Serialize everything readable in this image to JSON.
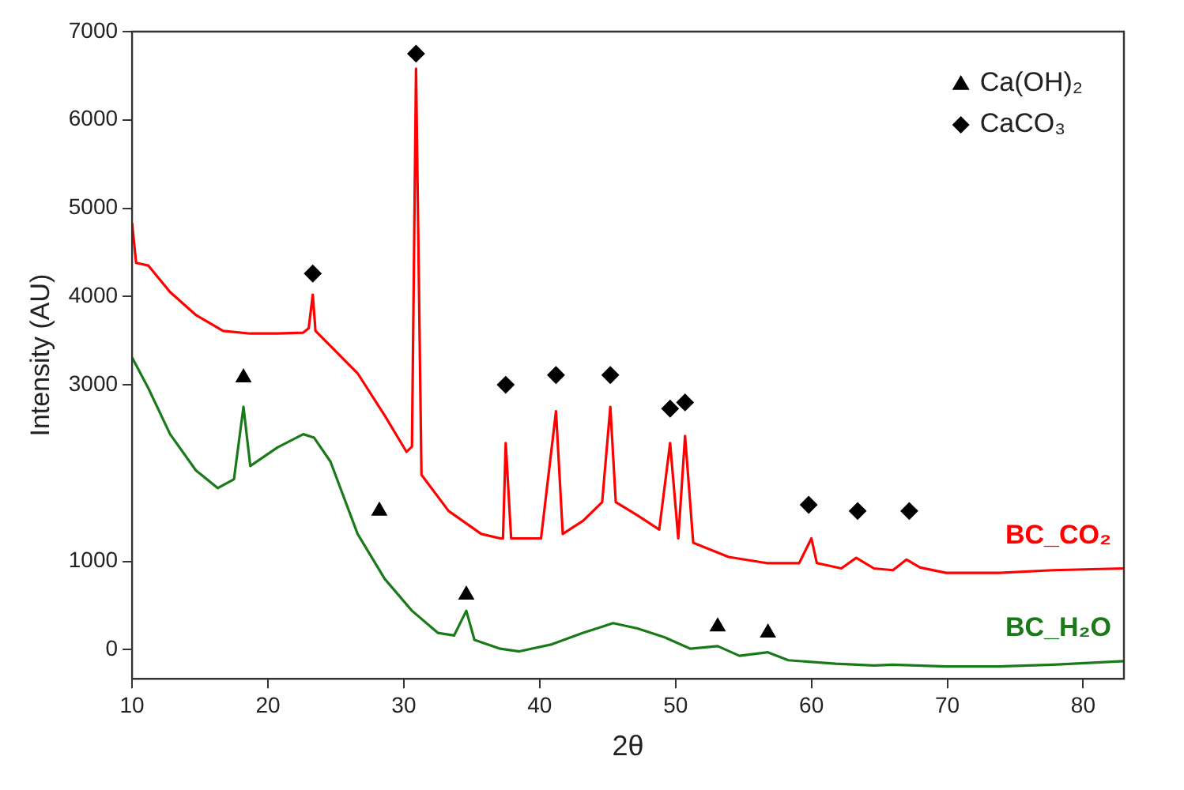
{
  "chart_data": {
    "type": "line",
    "xlabel": "2θ",
    "ylabel": "Intensity (AU)",
    "xlim": [
      10,
      83
    ],
    "xticks": [
      10,
      20,
      30,
      40,
      50,
      60,
      70,
      80
    ],
    "ylim": [
      -330,
      7000
    ],
    "yticks": [
      0,
      1000,
      3000,
      4000,
      5000,
      6000,
      7000
    ],
    "grid": false,
    "legend": "top right",
    "marker": "none",
    "line_style": "solid",
    "series": [
      {
        "name": "BC_CO₂",
        "color": "#ff0000",
        "x": [
          10,
          10.3,
          11.2,
          12.8,
          14.7,
          16.7,
          18.7,
          20.7,
          22.6,
          23.0,
          23.3,
          23.5,
          24.6,
          26.6,
          28.6,
          30.2,
          30.6,
          30.9,
          31.3,
          33.3,
          35.7,
          37.1,
          37.3,
          37.5,
          37.9,
          40.1,
          41.2,
          41.7,
          43.2,
          44.6,
          45.2,
          45.6,
          47.2,
          48.8,
          49.6,
          50.2,
          50.7,
          51.3,
          53.9,
          56.7,
          59.1,
          60.0,
          60.4,
          62.2,
          63.3,
          64.6,
          66.0,
          67.0,
          68.0,
          69.9,
          73.9,
          77.8,
          83.0
        ],
        "values": [
          4830,
          4380,
          4350,
          4050,
          3790,
          3610,
          3580,
          3580,
          3590,
          3640,
          4020,
          3610,
          3440,
          3130,
          2650,
          2240,
          2300,
          6580,
          1980,
          1570,
          1310,
          1260,
          1260,
          2340,
          1260,
          1260,
          2700,
          1310,
          1460,
          1670,
          2750,
          1670,
          1520,
          1360,
          2340,
          1260,
          2420,
          1210,
          1050,
          980,
          980,
          1260,
          980,
          920,
          1040,
          920,
          900,
          1020,
          930,
          870,
          870,
          900,
          920
        ]
      },
      {
        "name": "BC_H₂O",
        "color": "#1a7a1a",
        "x": [
          10,
          11.2,
          12.8,
          14.7,
          16.3,
          17.5,
          18.2,
          18.7,
          20.7,
          22.6,
          23.4,
          24.6,
          26.6,
          28.6,
          30.6,
          32.5,
          33.7,
          34.6,
          35.2,
          37.1,
          38.5,
          40.9,
          43.2,
          45.4,
          47.2,
          49.2,
          51.1,
          53.1,
          54.7,
          56.8,
          58.3,
          61.8,
          64.6,
          66.0,
          69.9,
          73.9,
          77.8,
          83.0
        ],
        "values": [
          3310,
          2960,
          2440,
          2030,
          1830,
          1930,
          2750,
          2080,
          2290,
          2440,
          2400,
          2130,
          1310,
          800,
          440,
          190,
          160,
          440,
          110,
          10,
          -20,
          60,
          190,
          300,
          240,
          140,
          10,
          40,
          -70,
          -30,
          -120,
          -160,
          -180,
          -170,
          -190,
          -190,
          -170,
          -130
        ]
      },
      {
        "name": "Ca(OH)₂",
        "color": "#000000",
        "type": "scatter",
        "marker": "triangle",
        "x": [
          18.2,
          28.2,
          34.6,
          53.1,
          56.8
        ],
        "values": [
          3080,
          1570,
          620,
          260,
          190
        ]
      },
      {
        "name": "CaCO₃",
        "color": "#000000",
        "type": "scatter",
        "marker": "diamond",
        "x": [
          23.3,
          30.9,
          37.5,
          41.2,
          45.2,
          49.6,
          50.7,
          59.8,
          63.4,
          67.2
        ],
        "values": [
          4260,
          6750,
          3000,
          3110,
          3110,
          2730,
          2800,
          1640,
          1570,
          1570
        ]
      }
    ]
  }
}
